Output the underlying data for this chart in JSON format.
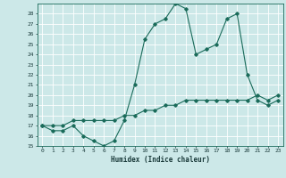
{
  "title": "",
  "xlabel": "Humidex (Indice chaleur)",
  "ylabel": "",
  "bg_color": "#cce8e8",
  "grid_color": "#ffffff",
  "line_color": "#1a6b5a",
  "xlim": [
    -0.5,
    23.5
  ],
  "ylim": [
    15,
    29
  ],
  "yticks": [
    15,
    16,
    17,
    18,
    19,
    20,
    21,
    22,
    23,
    24,
    25,
    26,
    27,
    28
  ],
  "xticks": [
    0,
    1,
    2,
    3,
    4,
    5,
    6,
    7,
    8,
    9,
    10,
    11,
    12,
    13,
    14,
    15,
    16,
    17,
    18,
    19,
    20,
    21,
    22,
    23
  ],
  "series1_x": [
    0,
    1,
    2,
    3,
    4,
    5,
    6,
    7,
    8,
    9,
    10,
    11,
    12,
    13,
    14,
    15,
    16,
    17,
    18,
    19,
    20,
    21,
    22,
    23
  ],
  "series1_y": [
    17,
    16.5,
    16.5,
    17,
    16,
    15.5,
    15,
    15.5,
    17.5,
    21,
    25.5,
    27,
    27.5,
    29,
    28.5,
    24,
    24.5,
    25,
    27.5,
    28,
    22,
    19.5,
    19,
    19.5
  ],
  "series2_x": [
    0,
    1,
    2,
    3,
    4,
    5,
    6,
    7,
    8,
    9,
    10,
    11,
    12,
    13,
    14,
    15,
    16,
    17,
    18,
    19,
    20,
    21,
    22,
    23
  ],
  "series2_y": [
    17,
    17,
    17,
    17.5,
    17.5,
    17.5,
    17.5,
    17.5,
    18,
    18,
    18.5,
    18.5,
    19,
    19,
    19.5,
    19.5,
    19.5,
    19.5,
    19.5,
    19.5,
    19.5,
    20,
    19.5,
    20
  ],
  "marker": "D",
  "marker_size": 1.8,
  "line_width": 0.8
}
